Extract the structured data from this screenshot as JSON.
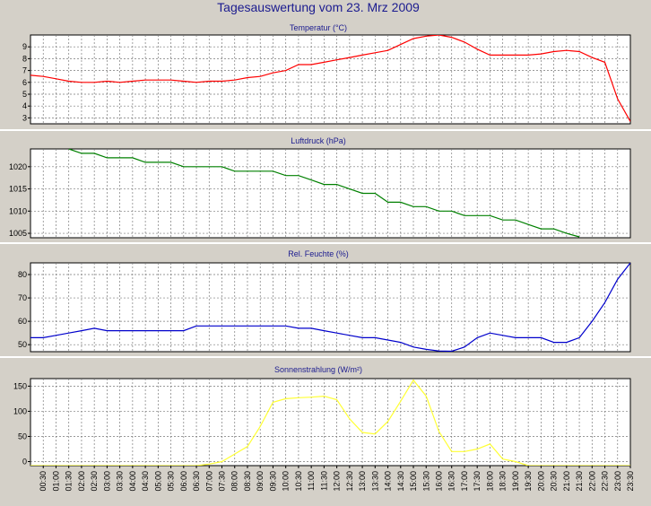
{
  "title": "Tagesauswertung vom 23. Mrz 2009",
  "colors": {
    "background": "#d4d0c8",
    "plot_bg": "#ffffff",
    "title": "#1b1b8f",
    "grid": "#7a7a7a",
    "separator": "#ffffff"
  },
  "chart_data": [
    {
      "type": "line",
      "title": "Temperatur (°C)",
      "color": "#ff0000",
      "ylim": [
        2.5,
        10
      ],
      "yticks": [
        3,
        4,
        5,
        6,
        7,
        8,
        9
      ],
      "grid": true,
      "x": [
        0,
        0.5,
        1,
        1.5,
        2,
        2.5,
        3,
        3.5,
        4,
        4.5,
        5,
        5.5,
        6,
        6.5,
        7,
        7.5,
        8,
        8.5,
        9,
        9.5,
        10,
        10.5,
        11,
        11.5,
        12,
        12.5,
        13,
        13.5,
        14,
        14.5,
        15,
        15.5,
        16,
        16.5,
        17,
        17.5,
        18,
        18.5,
        19,
        19.5,
        20,
        20.5,
        21,
        21.5,
        22,
        22.5,
        23,
        23.5
      ],
      "values": [
        6.6,
        6.5,
        6.3,
        6.1,
        6.0,
        6.0,
        6.1,
        6.0,
        6.1,
        6.2,
        6.2,
        6.2,
        6.1,
        6.0,
        6.1,
        6.1,
        6.2,
        6.4,
        6.5,
        6.8,
        7.0,
        7.5,
        7.5,
        7.7,
        7.9,
        8.1,
        8.3,
        8.5,
        8.7,
        9.2,
        9.7,
        9.9,
        10.0,
        9.8,
        9.4,
        8.8,
        8.3,
        8.3,
        8.3,
        8.3,
        8.4,
        8.6,
        8.7,
        8.6,
        8.1,
        7.7,
        4.6,
        2.7
      ]
    },
    {
      "type": "line",
      "title": "Luftdruck (hPa)",
      "color": "#008000",
      "ylim": [
        1004,
        1024
      ],
      "yticks": [
        1005,
        1010,
        1015,
        1020
      ],
      "grid": true,
      "x": [
        1.5,
        2,
        2.5,
        3,
        3.5,
        4,
        4.5,
        5,
        5.5,
        6,
        6.5,
        7,
        7.5,
        8,
        8.5,
        9,
        9.5,
        10,
        10.5,
        11,
        11.5,
        12,
        12.5,
        13,
        13.5,
        14,
        14.5,
        15,
        15.5,
        16,
        16.5,
        17,
        17.5,
        18,
        18.5,
        19,
        19.5,
        20,
        20.5,
        21,
        21.5
      ],
      "values": [
        1024,
        1023,
        1023,
        1022,
        1022,
        1022,
        1021,
        1021,
        1021,
        1020,
        1020,
        1020,
        1020,
        1019,
        1019,
        1019,
        1019,
        1018,
        1018,
        1017,
        1016,
        1016,
        1015,
        1014,
        1014,
        1012,
        1012,
        1011,
        1011,
        1010,
        1010,
        1009,
        1009,
        1009,
        1008,
        1008,
        1007,
        1006,
        1006,
        1005,
        1004.2
      ]
    },
    {
      "type": "line",
      "title": "Rel. Feuchte (%)",
      "color": "#0000cc",
      "ylim": [
        47,
        85
      ],
      "yticks": [
        50,
        60,
        70,
        80
      ],
      "grid": true,
      "x": [
        0,
        0.5,
        1,
        1.5,
        2,
        2.5,
        3,
        3.5,
        4,
        4.5,
        5,
        5.5,
        6,
        6.5,
        7,
        7.5,
        8,
        8.5,
        9,
        9.5,
        10,
        10.5,
        11,
        11.5,
        12,
        12.5,
        13,
        13.5,
        14,
        14.5,
        15,
        15.5,
        16,
        16.5,
        17,
        17.5,
        18,
        18.5,
        19,
        19.5,
        20,
        20.5,
        21,
        21.5,
        22,
        22.5,
        23,
        23.5
      ],
      "values": [
        53,
        53,
        54,
        55,
        56,
        57,
        56,
        56,
        56,
        56,
        56,
        56,
        56,
        58,
        58,
        58,
        58,
        58,
        58,
        58,
        58,
        57,
        57,
        56,
        55,
        54,
        53,
        53,
        52,
        51,
        49,
        48,
        47.3,
        47.2,
        49,
        53,
        55,
        54,
        53,
        53,
        53,
        51,
        51,
        53,
        60,
        68,
        78,
        85
      ]
    },
    {
      "type": "line",
      "title": "Sonnenstrahlung (W/m²)",
      "color": "#ffff33",
      "ylim": [
        -8,
        165
      ],
      "yticks": [
        0,
        50,
        100,
        150
      ],
      "grid": true,
      "x": [
        0,
        6.5,
        7,
        7.5,
        8,
        8.5,
        9,
        9.5,
        10,
        10.5,
        11,
        11.5,
        12,
        12.5,
        13,
        13.5,
        14,
        14.5,
        15,
        15.5,
        16,
        16.5,
        17,
        17.5,
        18,
        18.5,
        19,
        19.5,
        23.5
      ],
      "values": [
        -8,
        -8,
        -5,
        0,
        15,
        30,
        70,
        118,
        125,
        127,
        128,
        130,
        123,
        85,
        58,
        55,
        80,
        120,
        162,
        130,
        60,
        20,
        20,
        25,
        35,
        5,
        0,
        -8,
        -8
      ]
    }
  ],
  "x_labels": [
    "00:30",
    "01:00",
    "01:30",
    "02:00",
    "02:30",
    "03:00",
    "03:30",
    "04:00",
    "04:30",
    "05:00",
    "05:30",
    "06:00",
    "06:30",
    "07:00",
    "07:30",
    "08:00",
    "08:30",
    "09:00",
    "09:30",
    "10:00",
    "10:30",
    "11:00",
    "11:30",
    "12:00",
    "12:30",
    "13:00",
    "13:30",
    "14:00",
    "14:30",
    "15:00",
    "15:30",
    "16:00",
    "16:30",
    "17:00",
    "17:30",
    "18:00",
    "18:30",
    "19:00",
    "19:30",
    "20:00",
    "20:30",
    "21:00",
    "21:30",
    "22:00",
    "22:30",
    "23:00",
    "23:30"
  ]
}
